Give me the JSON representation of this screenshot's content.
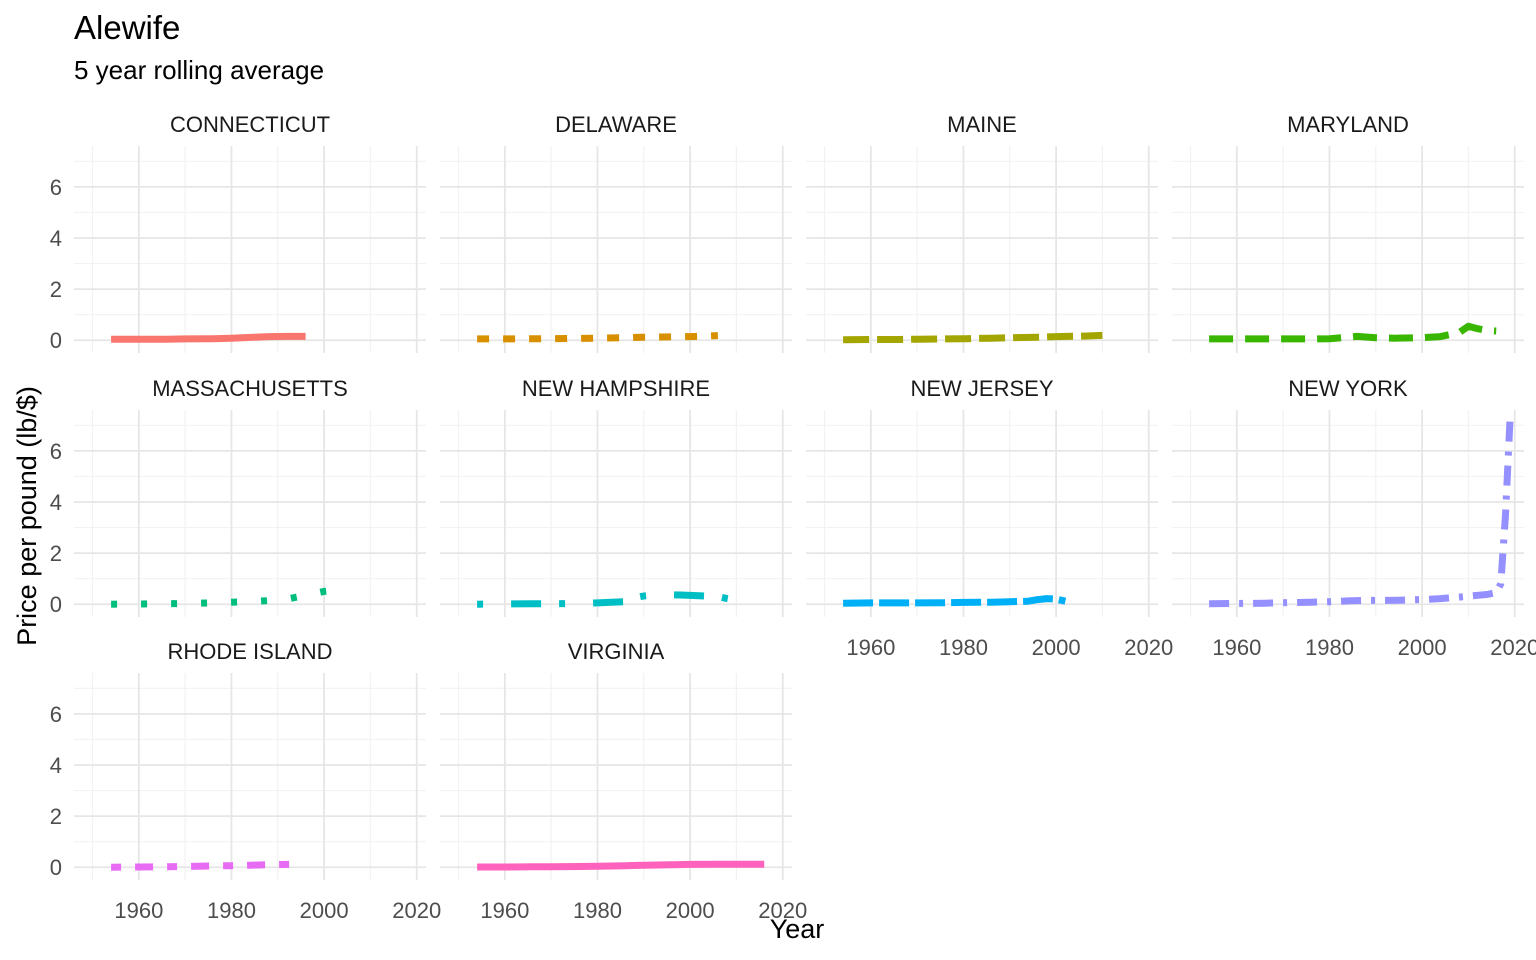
{
  "chart_data": {
    "type": "line",
    "title": "Alewife",
    "subtitle": "5 year rolling average",
    "xlabel": "Year",
    "ylabel": "Price per pound (lb/$)",
    "xlim": [
      1946,
      2022
    ],
    "ylim": [
      -0.5,
      7.6
    ],
    "x_ticks": [
      1960,
      1980,
      2000,
      2020
    ],
    "y_ticks": [
      0,
      2,
      4,
      6
    ],
    "grid": true,
    "legend": "none",
    "panels": [
      {
        "name": "CONNECTICUT",
        "color": "#F8766D",
        "dash": "solid",
        "x": [
          1954,
          1960,
          1966,
          1970,
          1976,
          1980,
          1984,
          1988,
          1992,
          1996
        ],
        "y": [
          0.04,
          0.04,
          0.04,
          0.05,
          0.06,
          0.08,
          0.11,
          0.14,
          0.15,
          0.15
        ]
      },
      {
        "name": "DELAWARE",
        "color": "#D89000",
        "dash": "dash1",
        "x": [
          1954,
          1960,
          1966,
          1970,
          1976,
          1980,
          1986,
          1990,
          1996,
          2000,
          2006
        ],
        "y": [
          0.05,
          0.05,
          0.06,
          0.06,
          0.07,
          0.08,
          0.1,
          0.12,
          0.13,
          0.14,
          0.18
        ]
      },
      {
        "name": "MAINE",
        "color": "#A3A500",
        "dash": "dash2",
        "x": [
          1954,
          1960,
          1966,
          1970,
          1976,
          1980,
          1986,
          1990,
          1996,
          2000,
          2006,
          2010
        ],
        "y": [
          0.02,
          0.03,
          0.03,
          0.04,
          0.05,
          0.06,
          0.08,
          0.1,
          0.12,
          0.14,
          0.16,
          0.19
        ]
      },
      {
        "name": "MARYLAND",
        "color": "#39B600",
        "dash": "dash3",
        "x": [
          1954,
          1960,
          1966,
          1970,
          1976,
          1980,
          1984,
          1986,
          1990,
          1994,
          2000,
          2004,
          2008,
          2010,
          2012,
          2014,
          2016
        ],
        "y": [
          0.05,
          0.05,
          0.05,
          0.05,
          0.05,
          0.06,
          0.12,
          0.15,
          0.1,
          0.08,
          0.1,
          0.14,
          0.3,
          0.55,
          0.45,
          0.38,
          0.36
        ]
      },
      {
        "name": "MASSACHUSETTS",
        "color": "#00BF7D",
        "dash": "dotted",
        "x": [
          1954,
          1960,
          1966,
          1970,
          1976,
          1980,
          1984,
          1988,
          1992,
          1996,
          2000,
          2004
        ],
        "y": [
          0.0,
          0.01,
          0.02,
          0.03,
          0.05,
          0.08,
          0.1,
          0.14,
          0.2,
          0.35,
          0.5,
          0.58
        ]
      },
      {
        "name": "NEW HAMPSHIRE",
        "color": "#00BFC4",
        "dash": "dash4",
        "x": [
          1954,
          1960,
          1966,
          1970,
          1976,
          1980,
          1986,
          1988,
          1990,
          1994,
          1998,
          2002,
          2006,
          2008,
          2010,
          2012,
          2014
        ],
        "y": [
          0.0,
          0.01,
          0.02,
          0.02,
          0.03,
          0.05,
          0.1,
          0.25,
          0.32,
          0.38,
          0.36,
          0.33,
          0.3,
          0.22,
          0.16,
          0.22,
          0.26
        ]
      },
      {
        "name": "NEW JERSEY",
        "color": "#00B0F6",
        "dash": "dash5",
        "x": [
          1954,
          1960,
          1966,
          1970,
          1976,
          1980,
          1986,
          1990,
          1994,
          1996,
          1998,
          2000,
          2002
        ],
        "y": [
          0.04,
          0.05,
          0.05,
          0.05,
          0.06,
          0.07,
          0.08,
          0.1,
          0.12,
          0.18,
          0.22,
          0.2,
          0.12
        ]
      },
      {
        "name": "NEW YORK",
        "color": "#9590FF",
        "dash": "dash6",
        "x": [
          1954,
          1960,
          1966,
          1970,
          1976,
          1980,
          1984,
          1988,
          1992,
          1996,
          2000,
          2004,
          2008,
          2012,
          2014,
          2016,
          2017,
          2018,
          2019
        ],
        "y": [
          0.02,
          0.03,
          0.04,
          0.06,
          0.08,
          0.1,
          0.13,
          0.15,
          0.15,
          0.16,
          0.18,
          0.22,
          0.28,
          0.35,
          0.38,
          0.45,
          0.8,
          3.5,
          7.3
        ]
      },
      {
        "name": "RHODE ISLAND",
        "color": "#E76BF3",
        "dash": "dash7",
        "x": [
          1954,
          1960,
          1966,
          1970,
          1976,
          1980,
          1984,
          1988,
          1994
        ],
        "y": [
          0.0,
          0.01,
          0.02,
          0.03,
          0.05,
          0.06,
          0.08,
          0.1,
          0.12
        ]
      },
      {
        "name": "VIRGINIA",
        "color": "#FF62BC",
        "dash": "solid",
        "x": [
          1954,
          1960,
          1966,
          1970,
          1976,
          1980,
          1986,
          1990,
          1996,
          2000,
          2006,
          2010,
          2016
        ],
        "y": [
          0.01,
          0.01,
          0.02,
          0.02,
          0.03,
          0.04,
          0.06,
          0.08,
          0.1,
          0.11,
          0.12,
          0.12,
          0.12
        ]
      }
    ]
  }
}
